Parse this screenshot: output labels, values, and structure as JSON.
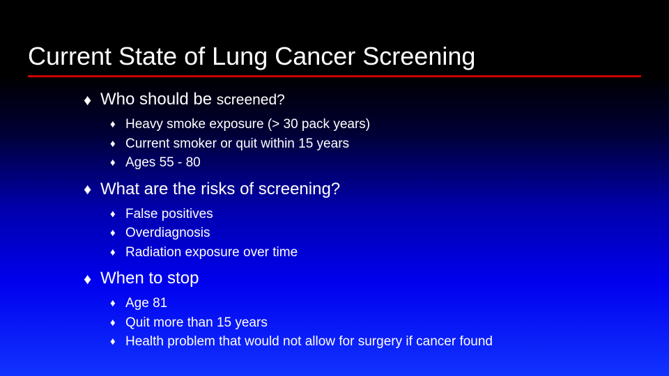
{
  "slide": {
    "title": "Current State of Lung Cancer Screening",
    "title_color": "#ffffff",
    "title_fontsize": 36,
    "underline_color": "#cc0000",
    "background_gradient": [
      "#000000",
      "#000000",
      "#000033",
      "#0000aa",
      "#0000ee",
      "#1133ff"
    ],
    "bullet_glyph": "♦",
    "text_color": "#ffffff",
    "sections": [
      {
        "header_prefix": "Who should be ",
        "header_suffix": "screened?",
        "header_fontsize": 24,
        "suffix_fontsize": 21,
        "items": [
          "Heavy smoke exposure (> 30 pack years)",
          "Current smoker or quit within 15 years",
          "Ages 55 - 80"
        ]
      },
      {
        "header": "What are the risks of screening?",
        "header_fontsize": 24,
        "items": [
          "False positives",
          "Overdiagnosis",
          "Radiation exposure over time"
        ]
      },
      {
        "header": "When to stop",
        "header_fontsize": 24,
        "items": [
          "Age 81",
          "Quit more than 15 years",
          "Health problem that would not allow for surgery if cancer found"
        ]
      }
    ]
  }
}
